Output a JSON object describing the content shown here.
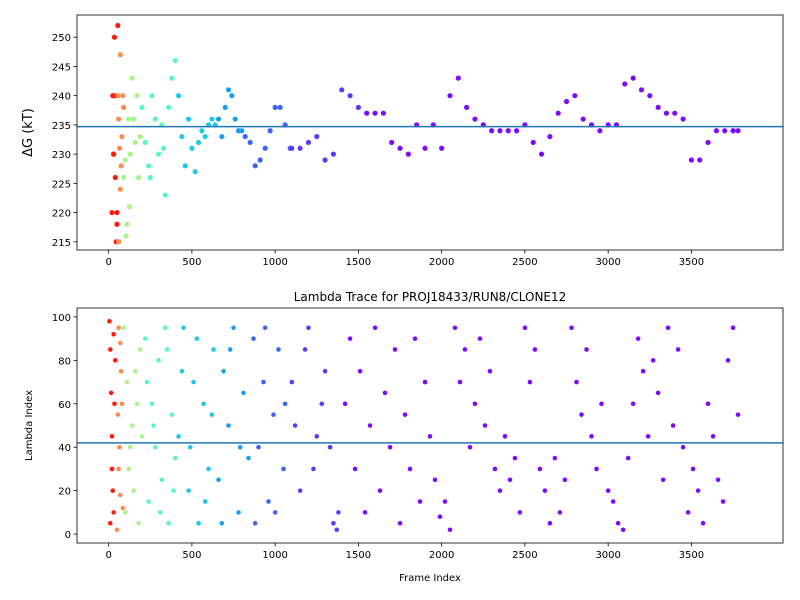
{
  "chart_data": [
    {
      "type": "scatter",
      "ylabel": "ΔG (kT)",
      "xlim": [
        -190,
        4050
      ],
      "ylim": [
        213.6,
        253.8
      ],
      "xticks": [
        0,
        500,
        1000,
        1500,
        2000,
        2500,
        3000,
        3500
      ],
      "yticks": [
        215,
        220,
        225,
        230,
        235,
        240,
        245,
        250
      ],
      "hline": {
        "value": 234.7,
        "color": "#1f77b4"
      },
      "series": [
        {
          "color": "#ff1a0d",
          "x": [
            20,
            25,
            30,
            35,
            40,
            45,
            50,
            30,
            40,
            55,
            50
          ],
          "values": [
            220,
            240,
            230,
            250,
            240,
            215,
            220,
            230,
            226,
            252,
            218
          ]
        },
        {
          "color": "#ff8c4a",
          "x": [
            55,
            60,
            65,
            70,
            75,
            80,
            85,
            90,
            60,
            70
          ],
          "values": [
            240,
            236,
            231,
            247,
            228,
            233,
            240,
            238,
            215,
            224
          ]
        },
        {
          "color": "#a8f58c",
          "x": [
            90,
            100,
            110,
            120,
            130,
            140,
            150,
            160,
            170,
            180,
            190,
            105,
            125
          ],
          "values": [
            226,
            229,
            218,
            236,
            230,
            243,
            236,
            232,
            240,
            226,
            233,
            216,
            221
          ]
        },
        {
          "color": "#5af5c8",
          "x": [
            200,
            220,
            240,
            260,
            280,
            300,
            320,
            340,
            360,
            380,
            400,
            250,
            330
          ],
          "values": [
            238,
            232,
            228,
            240,
            236,
            230,
            235,
            223,
            238,
            243,
            246,
            226,
            231
          ]
        },
        {
          "color": "#1ec8e6",
          "x": [
            420,
            440,
            460,
            480,
            500,
            520,
            540,
            560,
            580,
            600,
            620,
            640
          ],
          "values": [
            240,
            233,
            228,
            236,
            231,
            227,
            232,
            234,
            233,
            235,
            236,
            235
          ]
        },
        {
          "color": "#14a0f5",
          "x": [
            660,
            680,
            700,
            720,
            740,
            760,
            780,
            800
          ],
          "values": [
            236,
            233,
            238,
            241,
            240,
            236,
            234,
            234
          ]
        },
        {
          "color": "#3c64f5",
          "x": [
            820,
            850,
            880,
            910,
            940,
            970,
            1000,
            1030,
            1060,
            1090
          ],
          "values": [
            233,
            232,
            228,
            229,
            231,
            234,
            238,
            238,
            235,
            231
          ]
        },
        {
          "color": "#5a3cf5",
          "x": [
            1100,
            1150,
            1200,
            1250,
            1300,
            1350,
            1400,
            1450,
            1500
          ],
          "values": [
            231,
            231,
            232,
            233,
            229,
            230,
            241,
            240,
            238
          ]
        },
        {
          "color": "#7d0aff",
          "x": [
            1550,
            1600,
            1650,
            1700,
            1750,
            1800,
            1850,
            1900,
            1950,
            2000,
            2050,
            2100,
            2150,
            2200,
            2250,
            2300,
            2350,
            2400,
            2450,
            2500,
            2550,
            2600,
            2650,
            2700,
            2750,
            2800,
            2850,
            2900,
            2950,
            3000,
            3050,
            3100,
            3150,
            3200,
            3250,
            3300,
            3350,
            3400,
            3450,
            3500,
            3550,
            3600,
            3650,
            3700,
            3750,
            3780
          ],
          "values": [
            237,
            237,
            237,
            232,
            231,
            230,
            235,
            231,
            235,
            231,
            240,
            243,
            238,
            236,
            235,
            234,
            234,
            234,
            234,
            235,
            232,
            230,
            233,
            237,
            239,
            240,
            236,
            235,
            234,
            235,
            235,
            242,
            243,
            241,
            240,
            238,
            237,
            237,
            236,
            229,
            229,
            232,
            234,
            234,
            234,
            234
          ]
        }
      ]
    },
    {
      "type": "scatter",
      "title": "Lambda Trace for PROJ18433/RUN8/CLONE12",
      "xlabel": "Frame Index",
      "ylabel": "Lambda Index",
      "xlim": [
        -190,
        4050
      ],
      "ylim": [
        -4.1,
        104.1
      ],
      "xticks": [
        0,
        500,
        1000,
        1500,
        2000,
        2500,
        3000,
        3500
      ],
      "yticks": [
        0,
        20,
        40,
        60,
        80,
        100
      ],
      "hline": {
        "value": 42,
        "color": "#1f77b4"
      },
      "series": [
        {
          "color": "#ff1a0d",
          "x": [
            5,
            10,
            15,
            20,
            25,
            30,
            35,
            40,
            10,
            20,
            30
          ],
          "values": [
            98,
            85,
            65,
            45,
            20,
            10,
            60,
            80,
            5,
            30,
            92
          ]
        },
        {
          "color": "#ff8c4a",
          "x": [
            50,
            55,
            60,
            65,
            70,
            75,
            80,
            85,
            60,
            70
          ],
          "values": [
            2,
            55,
            95,
            40,
            18,
            75,
            60,
            12,
            30,
            88
          ]
        },
        {
          "color": "#a8f58c",
          "x": [
            90,
            110,
            130,
            150,
            170,
            190,
            100,
            120,
            140,
            160,
            180,
            200
          ],
          "values": [
            95,
            70,
            40,
            20,
            60,
            85,
            10,
            30,
            50,
            75,
            5,
            45
          ]
        },
        {
          "color": "#5af5c8",
          "x": [
            220,
            240,
            260,
            280,
            300,
            320,
            340,
            360,
            380,
            400,
            230,
            270,
            310,
            350,
            390
          ],
          "values": [
            90,
            15,
            60,
            40,
            80,
            25,
            95,
            5,
            55,
            35,
            70,
            50,
            10,
            85,
            20
          ]
        },
        {
          "color": "#1ec8e6",
          "x": [
            420,
            450,
            480,
            510,
            540,
            570,
            600,
            630,
            440,
            490,
            530,
            580,
            620
          ],
          "values": [
            45,
            95,
            20,
            70,
            5,
            60,
            30,
            85,
            75,
            40,
            90,
            15,
            55
          ]
        },
        {
          "color": "#14a0f5",
          "x": [
            660,
            690,
            720,
            750,
            780,
            810,
            840,
            680,
            730,
            790
          ],
          "values": [
            25,
            75,
            50,
            95,
            10,
            65,
            35,
            5,
            85,
            40
          ]
        },
        {
          "color": "#3c64f5",
          "x": [
            870,
            900,
            930,
            960,
            990,
            1020,
            1050,
            880,
            940,
            1000,
            1060
          ],
          "values": [
            90,
            40,
            70,
            15,
            55,
            85,
            30,
            5,
            95,
            10,
            60
          ]
        },
        {
          "color": "#5a3cf5",
          "x": [
            1100,
            1150,
            1200,
            1250,
            1300,
            1350,
            1380,
            1120,
            1180,
            1230,
            1280,
            1330,
            1370
          ],
          "values": [
            70,
            20,
            95,
            45,
            75,
            5,
            10,
            50,
            85,
            30,
            60,
            40,
            2
          ]
        },
        {
          "color": "#7d0aff",
          "x": [
            1420,
            1450,
            1480,
            1510,
            1540,
            1570,
            1600,
            1630,
            1660,
            1690,
            1720,
            1750,
            1780,
            1810,
            1840,
            1870,
            1900,
            1930,
            1960,
            1990,
            2020,
            2050,
            2080,
            2110,
            2140,
            2170,
            2200,
            2230,
            2260,
            2290,
            2320,
            2350,
            2380,
            2410,
            2440,
            2470,
            2500,
            2530,
            2560,
            2590,
            2620,
            2650,
            2680,
            2710,
            2740,
            2780,
            2810,
            2840,
            2870,
            2900,
            2930,
            2960,
            3000,
            3030,
            3060,
            3090,
            3120,
            3150,
            3180,
            3210,
            3240,
            3270,
            3300,
            3330,
            3360,
            3390,
            3420,
            3450,
            3480,
            3510,
            3540,
            3570,
            3600,
            3630,
            3660,
            3690,
            3720,
            3750,
            3780
          ],
          "values": [
            60,
            90,
            30,
            75,
            10,
            50,
            95,
            20,
            65,
            40,
            85,
            5,
            55,
            30,
            90,
            15,
            70,
            45,
            25,
            8,
            15,
            2,
            95,
            70,
            85,
            40,
            60,
            90,
            50,
            75,
            30,
            20,
            45,
            25,
            35,
            10,
            95,
            70,
            85,
            30,
            20,
            5,
            35,
            10,
            25,
            95,
            70,
            55,
            85,
            45,
            30,
            60,
            20,
            15,
            5,
            2,
            35,
            60,
            90,
            75,
            45,
            80,
            65,
            25,
            95,
            50,
            85,
            40,
            10,
            30,
            20,
            5,
            60,
            45,
            25,
            15,
            80,
            95,
            55
          ]
        }
      ]
    }
  ]
}
